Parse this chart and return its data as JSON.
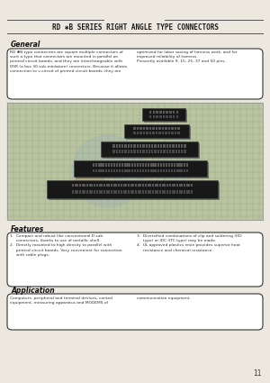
{
  "bg_color": "#ede8df",
  "page_bg": "#ede8df",
  "title": "RD ✱B SERIES RIGHT ANGLE TYPE CONNECTORS",
  "title_fontsize": 5.5,
  "header_line_color": "#555555",
  "general_heading": "General",
  "general_text_left": "RD ✱B type connectors are square multiple connectors of\nsuch a type that connectors are mounted in parallel on\nprinted circuit boards, and they are interchangeable with\nDSR (a box 30 sub-miniature) connectors. Because it allows\nconnection to v-circuit of printed circuit boards, they are",
  "general_text_right": "optimized for labor saving of harness work, and for\nimproved reliability of harness.\nPresently available 9, 15, 25, 37 and 50 pins.",
  "features_heading": "Features",
  "features_text_left": "1.  Compact and robust like conventional D sub\n     connectors, thanks to use of metallic shell.\n2.  Directly mounted to high density to parallel with\n     printed circuit boards. Very convenient for connection\n     with cable plugs.",
  "features_text_right": "3.  Diversified combinations of clip and soldering (HD\n     type) or IDC (ITC type) may be made.\n4.  UL approved plastics resin provides superior heat\n     resistance and chemical resistance.",
  "application_heading": "Application",
  "application_text_left": "Computers, peripheral and terminal devices, control\nequipment, measuring apparatus and MODEMS of",
  "application_text_right": "communication equipment.",
  "page_number": "11",
  "box_border_color": "#333333",
  "box_bg_color": "#ffffff",
  "image_bg": "#b8c4a0",
  "grid_color": "#8a9070",
  "watermark_color": "#a0b8d0"
}
